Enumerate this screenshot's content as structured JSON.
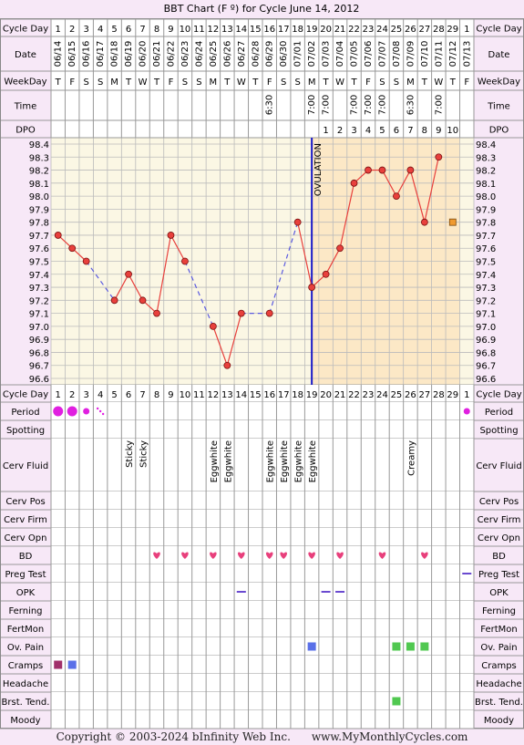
{
  "title": "BBT Chart (F º) for Cycle June 14, 2012",
  "footer": {
    "copyright": "Copyright © 2003-2024 bInfinity Web Inc.",
    "site": "www.MyMonthlyCycles.com"
  },
  "colors": {
    "page_bg": "#f7e8f7",
    "grid_bg": "#fbf7e4",
    "luteal_bg": "#fce8c6",
    "grid_line": "#bbbbbb",
    "temp_line": "#e8403c",
    "temp_point_fill": "#e8403c",
    "missing_line": "#5a5ae0",
    "ovulation_line": "#1a1ac8",
    "period_fill": "#e020e0",
    "heart": "#e8407c",
    "cramps_1": "#a0306a",
    "cramps_2": "#5a70e8",
    "green": "#50c850",
    "blue_square": "#5a70e8",
    "extra_point": "#f09a30"
  },
  "labels": {
    "cycle_day": "Cycle Day",
    "date": "Date",
    "weekday": "WeekDay",
    "time": "Time",
    "dpo": "DPO",
    "ovulation": "OVULATION"
  },
  "rows": [
    "Period",
    "Spotting",
    "Cerv Fluid",
    "Cerv Pos",
    "Cerv Firm",
    "Cerv Opn",
    "BD",
    "Preg Test",
    "OPK",
    "Ferning",
    "FertMon",
    "Ov. Pain",
    "Cramps",
    "Headache",
    "Brst. Tend.",
    "Moody"
  ],
  "cycle_days": [
    "1",
    "2",
    "3",
    "4",
    "5",
    "6",
    "7",
    "8",
    "9",
    "10",
    "11",
    "12",
    "13",
    "14",
    "15",
    "16",
    "17",
    "18",
    "19",
    "20",
    "21",
    "22",
    "23",
    "24",
    "25",
    "26",
    "27",
    "28",
    "29",
    "1"
  ],
  "dates": [
    "06/14",
    "06/15",
    "06/16",
    "06/17",
    "06/18",
    "06/19",
    "06/20",
    "06/21",
    "06/22",
    "06/23",
    "06/24",
    "06/25",
    "06/26",
    "06/27",
    "06/28",
    "06/29",
    "06/30",
    "07/01",
    "07/02",
    "07/03",
    "07/04",
    "07/05",
    "07/06",
    "07/07",
    "07/08",
    "07/09",
    "07/10",
    "07/11",
    "07/12",
    "07/13"
  ],
  "weekdays": [
    "T",
    "F",
    "S",
    "S",
    "M",
    "T",
    "W",
    "T",
    "F",
    "S",
    "S",
    "M",
    "T",
    "W",
    "T",
    "F",
    "S",
    "S",
    "M",
    "T",
    "W",
    "T",
    "F",
    "S",
    "S",
    "M",
    "T",
    "W",
    "T",
    "F"
  ],
  "times": [
    "",
    "",
    "",
    "",
    "",
    "",
    "",
    "",
    "",
    "",
    "",
    "",
    "",
    "",
    "",
    "6:30",
    "",
    "",
    "7:00",
    "7:00",
    "",
    "7:00",
    "7:00",
    "7:00",
    "",
    "6:30",
    "",
    "7:00",
    "",
    ""
  ],
  "dpo": [
    "",
    "",
    "",
    "",
    "",
    "",
    "",
    "",
    "",
    "",
    "",
    "",
    "",
    "",
    "",
    "",
    "",
    "",
    "",
    "1",
    "2",
    "3",
    "4",
    "5",
    "6",
    "7",
    "8",
    "9",
    "10",
    ""
  ],
  "cerv_fluid": [
    "",
    "",
    "",
    "",
    "",
    "Sticky",
    "Sticky",
    "",
    "",
    "",
    "",
    "Eggwhite",
    "Eggwhite",
    "",
    "",
    "Eggwhite",
    "Eggwhite",
    "Eggwhite",
    "Eggwhite",
    "",
    "",
    "",
    "",
    "",
    "",
    "Creamy",
    "",
    "",
    "",
    ""
  ],
  "chart_data": {
    "type": "line",
    "title": "BBT Chart (F º) for Cycle June 14, 2012",
    "xlabel": "Cycle Day",
    "ylabel": "",
    "ylim": [
      96.6,
      98.4
    ],
    "yticks": [
      "98.4",
      "98.3",
      "98.2",
      "98.1",
      "98.0",
      "97.9",
      "97.8",
      "97.7",
      "97.6",
      "97.5",
      "97.4",
      "97.3",
      "97.2",
      "97.1",
      "97.0",
      "96.9",
      "96.8",
      "96.7",
      "96.6"
    ],
    "x": [
      1,
      2,
      3,
      4,
      5,
      6,
      7,
      8,
      9,
      10,
      11,
      12,
      13,
      14,
      15,
      16,
      17,
      18,
      19,
      20,
      21,
      22,
      23,
      24,
      25,
      26,
      27,
      28,
      29,
      30
    ],
    "series": [
      {
        "values": [
          97.7,
          97.6,
          97.5,
          null,
          97.2,
          97.4,
          97.2,
          97.1,
          97.7,
          97.5,
          null,
          97.0,
          96.7,
          97.1,
          null,
          97.1,
          null,
          97.8,
          97.3,
          97.4,
          97.6,
          98.1,
          98.2,
          98.2,
          98.0,
          98.2,
          97.8,
          98.3,
          null,
          null
        ]
      }
    ],
    "extra_point": {
      "day": 29,
      "value": 97.8
    },
    "ovulation_day": 19,
    "grid": true
  },
  "markers": {
    "period": [
      {
        "day": 1,
        "size": "large"
      },
      {
        "day": 2,
        "size": "large"
      },
      {
        "day": 3,
        "size": "medium"
      },
      {
        "day": 4,
        "size": "dots"
      },
      {
        "day": 30,
        "size": "medium"
      }
    ],
    "bd": [
      8,
      10,
      12,
      14,
      16,
      17,
      19,
      21,
      24,
      27
    ],
    "preg_test": [
      30
    ],
    "opk": [
      14,
      20,
      21
    ],
    "ov_pain": [
      {
        "day": 19,
        "color": "blue"
      },
      {
        "day": 25,
        "color": "green"
      },
      {
        "day": 26,
        "color": "green"
      },
      {
        "day": 27,
        "color": "green"
      }
    ],
    "cramps": [
      {
        "day": 1,
        "color": "purple"
      },
      {
        "day": 2,
        "color": "blue"
      }
    ],
    "brst_tend": [
      25
    ]
  }
}
